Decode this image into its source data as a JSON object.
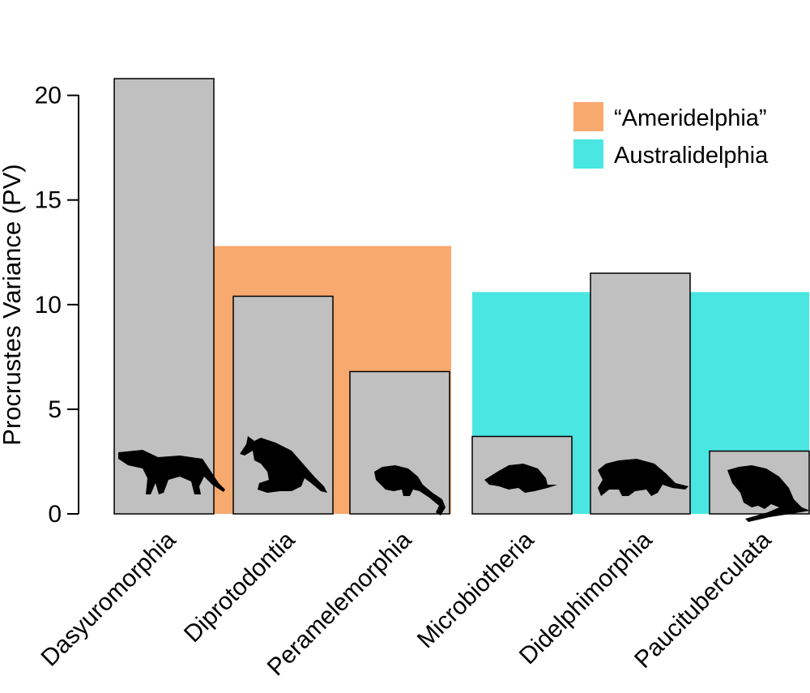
{
  "chart_data": {
    "type": "bar",
    "title": "",
    "xlabel": "",
    "ylabel": "Procrustes Variance (PV)",
    "ylim": [
      0,
      20.8
    ],
    "yticks": [
      0,
      5,
      10,
      15,
      20
    ],
    "categories": [
      "Dasyuromorphia",
      "Diprotodontia",
      "Peramelemorphia",
      "Microbiotheria",
      "Didelphimorphia",
      "Paucituberculata"
    ],
    "values": [
      20.8,
      10.4,
      6.8,
      3.7,
      11.5,
      3.0
    ],
    "bar_color": "#c0c0c0",
    "groups": [
      {
        "name": "“Ameridelphia”",
        "value": 12.8,
        "color": "#f8a96e",
        "from_index": 1,
        "to_index": 2
      },
      {
        "name": "Australidelphia",
        "value": 10.6,
        "color": "#4ae6e2",
        "from_index": 3,
        "to_index": 5
      }
    ],
    "silhouettes": [
      "thylacine-icon",
      "kangaroo-icon",
      "bandicoot-icon",
      "monito-del-monte-icon",
      "opossum-icon",
      "shrew-opossum-icon"
    ],
    "legend_position": "top-right"
  }
}
